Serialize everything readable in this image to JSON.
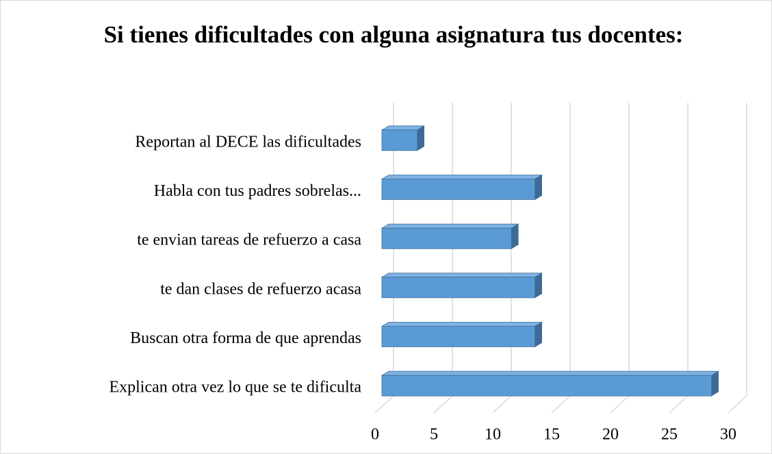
{
  "chart_data": {
    "type": "bar",
    "orientation": "horizontal",
    "title": "Si tienes dificultades con alguna asignatura tus docentes:",
    "categories": [
      "Reportan al DECE  las dificultades",
      "Habla con tus padres sobrelas...",
      "te envian tareas de refuerzo a casa",
      "te dan clases de refuerzo acasa",
      "Buscan otra forma de que aprendas",
      "Explican otra vez lo que se te dificulta"
    ],
    "values": [
      3,
      13,
      11,
      13,
      13,
      28
    ],
    "color": "#5b9bd5",
    "xlim": [
      0,
      30
    ],
    "xticks": [
      0,
      5,
      10,
      15,
      20,
      25,
      30
    ],
    "grid": true
  }
}
